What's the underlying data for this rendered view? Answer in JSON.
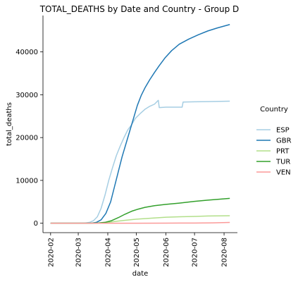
{
  "chart_data": {
    "type": "line",
    "title": "TOTAL_DEATHS by Date and Country - Group D",
    "xlabel": "date",
    "ylabel": "total_deaths",
    "xlim": [
      "2020-01-24",
      "2020-08-15"
    ],
    "ylim": [
      -2200,
      48500
    ],
    "x_ticks": [
      "2020-02",
      "2020-03",
      "2020-04",
      "2020-05",
      "2020-06",
      "2020-07",
      "2020-08"
    ],
    "y_ticks": [
      0,
      10000,
      20000,
      30000,
      40000
    ],
    "y_tick_labels": [
      "0",
      "10000",
      "20000",
      "30000",
      "40000"
    ],
    "grid": false,
    "legend": {
      "title": "Country",
      "placement": "right",
      "entries": [
        "ESP",
        "GBR",
        "PRT",
        "TUR",
        "VEN"
      ]
    },
    "series": [
      {
        "name": "ESP",
        "color": "#a6cee3",
        "points": [
          [
            "2020-02-01",
            0
          ],
          [
            "2020-03-01",
            0
          ],
          [
            "2020-03-08",
            30
          ],
          [
            "2020-03-13",
            200
          ],
          [
            "2020-03-17",
            600
          ],
          [
            "2020-03-21",
            1500
          ],
          [
            "2020-03-25",
            3500
          ],
          [
            "2020-03-29",
            6500
          ],
          [
            "2020-04-02",
            10000
          ],
          [
            "2020-04-06",
            13000
          ],
          [
            "2020-04-10",
            15800
          ],
          [
            "2020-04-14",
            18000
          ],
          [
            "2020-04-18",
            20000
          ],
          [
            "2020-04-22",
            21800
          ],
          [
            "2020-04-26",
            23000
          ],
          [
            "2020-04-30",
            24500
          ],
          [
            "2020-05-05",
            25600
          ],
          [
            "2020-05-10",
            26600
          ],
          [
            "2020-05-15",
            27300
          ],
          [
            "2020-05-20",
            27800
          ],
          [
            "2020-05-24",
            28700
          ],
          [
            "2020-05-25",
            27000
          ],
          [
            "2020-06-01",
            27100
          ],
          [
            "2020-06-10",
            27100
          ],
          [
            "2020-06-18",
            27100
          ],
          [
            "2020-06-19",
            28300
          ],
          [
            "2020-07-01",
            28350
          ],
          [
            "2020-07-15",
            28400
          ],
          [
            "2020-08-07",
            28500
          ]
        ]
      },
      {
        "name": "GBR",
        "color": "#1f78b4",
        "points": [
          [
            "2020-02-01",
            0
          ],
          [
            "2020-03-01",
            0
          ],
          [
            "2020-03-15",
            30
          ],
          [
            "2020-03-20",
            200
          ],
          [
            "2020-03-25",
            800
          ],
          [
            "2020-03-30",
            2300
          ],
          [
            "2020-04-04",
            5000
          ],
          [
            "2020-04-08",
            8500
          ],
          [
            "2020-04-12",
            12000
          ],
          [
            "2020-04-16",
            15500
          ],
          [
            "2020-04-20",
            18500
          ],
          [
            "2020-04-24",
            21500
          ],
          [
            "2020-04-28",
            24500
          ],
          [
            "2020-05-02",
            27500
          ],
          [
            "2020-05-06",
            29800
          ],
          [
            "2020-05-10",
            31600
          ],
          [
            "2020-05-15",
            33500
          ],
          [
            "2020-05-20",
            35200
          ],
          [
            "2020-05-25",
            36800
          ],
          [
            "2020-05-31",
            38600
          ],
          [
            "2020-06-07",
            40300
          ],
          [
            "2020-06-15",
            41800
          ],
          [
            "2020-06-25",
            43000
          ],
          [
            "2020-07-05",
            44000
          ],
          [
            "2020-07-15",
            44900
          ],
          [
            "2020-07-25",
            45600
          ],
          [
            "2020-08-07",
            46400
          ]
        ]
      },
      {
        "name": "PRT",
        "color": "#b2df8a",
        "points": [
          [
            "2020-02-01",
            0
          ],
          [
            "2020-03-15",
            0
          ],
          [
            "2020-03-25",
            40
          ],
          [
            "2020-04-01",
            180
          ],
          [
            "2020-04-10",
            450
          ],
          [
            "2020-04-20",
            700
          ],
          [
            "2020-05-01",
            950
          ],
          [
            "2020-05-15",
            1150
          ],
          [
            "2020-06-01",
            1400
          ],
          [
            "2020-06-15",
            1500
          ],
          [
            "2020-07-01",
            1580
          ],
          [
            "2020-07-15",
            1680
          ],
          [
            "2020-08-07",
            1750
          ]
        ]
      },
      {
        "name": "TUR",
        "color": "#33a02c",
        "points": [
          [
            "2020-02-01",
            0
          ],
          [
            "2020-03-15",
            0
          ],
          [
            "2020-03-22",
            60
          ],
          [
            "2020-03-29",
            200
          ],
          [
            "2020-04-05",
            600
          ],
          [
            "2020-04-12",
            1300
          ],
          [
            "2020-04-19",
            2100
          ],
          [
            "2020-04-26",
            2800
          ],
          [
            "2020-05-03",
            3300
          ],
          [
            "2020-05-10",
            3700
          ],
          [
            "2020-05-20",
            4100
          ],
          [
            "2020-06-01",
            4400
          ],
          [
            "2020-06-15",
            4700
          ],
          [
            "2020-07-01",
            5100
          ],
          [
            "2020-07-15",
            5400
          ],
          [
            "2020-08-07",
            5800
          ]
        ]
      },
      {
        "name": "VEN",
        "color": "#fb9a99",
        "points": [
          [
            "2020-02-01",
            0
          ],
          [
            "2020-03-15",
            0
          ],
          [
            "2020-05-01",
            10
          ],
          [
            "2020-06-01",
            20
          ],
          [
            "2020-07-01",
            50
          ],
          [
            "2020-07-20",
            90
          ],
          [
            "2020-08-07",
            180
          ]
        ]
      }
    ]
  }
}
